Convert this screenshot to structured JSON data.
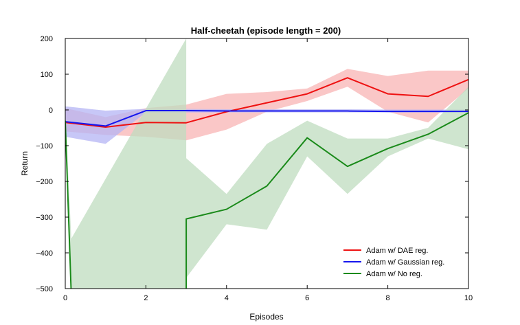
{
  "chart_data": {
    "type": "line",
    "title": "Half-cheetah (episode length = 200)",
    "xlabel": "Episodes",
    "ylabel": "Return",
    "xlim": [
      0,
      10
    ],
    "ylim": [
      -500,
      200
    ],
    "x_ticks": [
      0,
      2,
      4,
      6,
      8,
      10
    ],
    "y_ticks": [
      200,
      100,
      0,
      -100,
      -200,
      -300,
      -400,
      -500
    ],
    "x_tick_labels": [
      "0",
      "2",
      "4",
      "6",
      "8",
      "10"
    ],
    "y_tick_labels": [
      "200",
      "100",
      "0",
      "−100",
      "−200",
      "−300",
      "−400",
      "−500"
    ],
    "grid": false,
    "legend_position": "lower-right",
    "series": [
      {
        "name": "Adam w/ DAE reg.",
        "color": "#ee1111",
        "band_color": "#f8b4b4",
        "x": [
          0,
          1,
          2,
          3,
          4,
          5,
          6,
          7,
          8,
          9,
          10
        ],
        "y": [
          -35,
          -48,
          -35,
          -36,
          -5,
          20,
          45,
          90,
          45,
          38,
          85
        ],
        "lower": [
          -60,
          -70,
          -75,
          -85,
          -55,
          -5,
          25,
          65,
          -5,
          -35,
          60
        ],
        "upper": [
          5,
          -20,
          5,
          15,
          45,
          50,
          60,
          115,
          95,
          110,
          110
        ]
      },
      {
        "name": "Adam w/ Gaussian reg.",
        "color": "#1515ee",
        "band_color": "#b4b4f4",
        "x": [
          0,
          1,
          2,
          3,
          4,
          5,
          6,
          7,
          8,
          9,
          10
        ],
        "y": [
          -33,
          -45,
          -2,
          -2,
          -3,
          -3,
          -3,
          -3,
          -4,
          -4,
          -4
        ],
        "lower": [
          -75,
          -95,
          -7,
          -7,
          -7,
          -7,
          -7,
          -7,
          -7,
          -7,
          -7
        ],
        "upper": [
          10,
          -2,
          3,
          3,
          2,
          2,
          2,
          2,
          1,
          1,
          1
        ]
      },
      {
        "name": "Adam w/ No reg.",
        "color": "#1a8a1a",
        "band_color": "#bfdcbf",
        "x": [
          0,
          0.15,
          3,
          3,
          4,
          5,
          6,
          7,
          8,
          9,
          10
        ],
        "y": [
          -30,
          -520,
          -520,
          -305,
          -278,
          -213,
          -78,
          -158,
          -108,
          -68,
          -8
        ],
        "lower": [
          -60,
          -500,
          -500,
          -470,
          -320,
          -335,
          -130,
          -235,
          -130,
          -80,
          -110
        ],
        "upper": [
          0,
          -360,
          200,
          -135,
          -235,
          -95,
          -30,
          -80,
          -80,
          -50,
          65
        ]
      }
    ]
  }
}
